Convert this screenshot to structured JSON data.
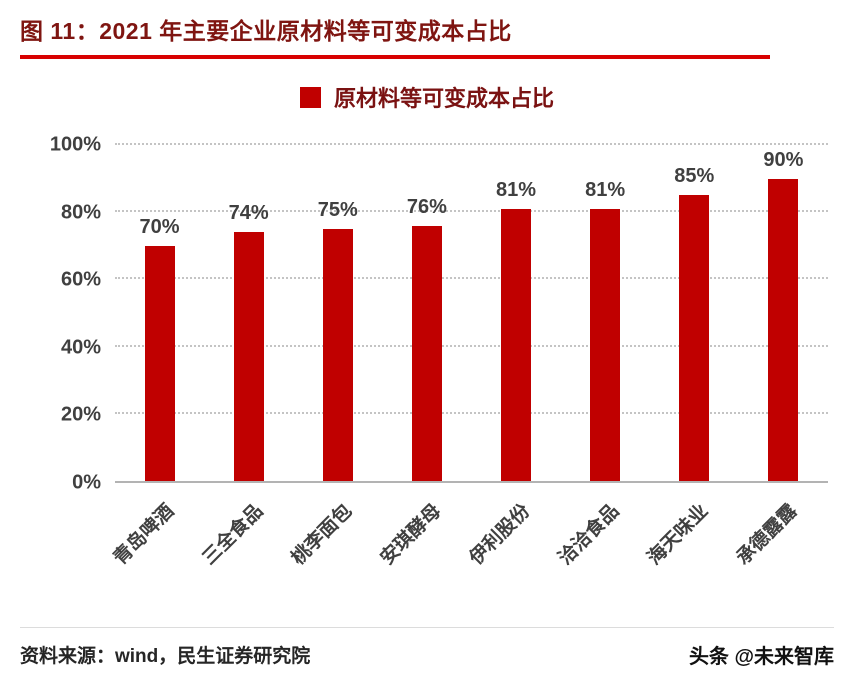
{
  "header": {
    "title": "图 11：2021 年主要企业原材料等可变成本占比",
    "underline_color": "#d80000"
  },
  "legend": {
    "label": "原材料等可变成本占比",
    "swatch_color": "#c00000"
  },
  "chart_data": {
    "type": "bar",
    "title": "原材料等可变成本占比",
    "categories": [
      "青岛啤酒",
      "三全食品",
      "桃李面包",
      "安琪酵母",
      "伊利股份",
      "洽洽食品",
      "海天味业",
      "承德露露"
    ],
    "values": [
      70,
      74,
      75,
      76,
      81,
      81,
      85,
      90
    ],
    "value_labels": [
      "70%",
      "74%",
      "75%",
      "76%",
      "81%",
      "81%",
      "85%",
      "90%"
    ],
    "xlabel": "",
    "ylabel": "",
    "ylim": [
      0,
      100
    ],
    "yticks": [
      "0%",
      "20%",
      "40%",
      "60%",
      "80%",
      "100%"
    ],
    "grid": "horizontal-dotted",
    "bar_color": "#c00000",
    "legend_position": "top-center"
  },
  "footer": {
    "source": "资料来源：wind，民生证券研究院",
    "watermark": "头条 @未来智库"
  }
}
